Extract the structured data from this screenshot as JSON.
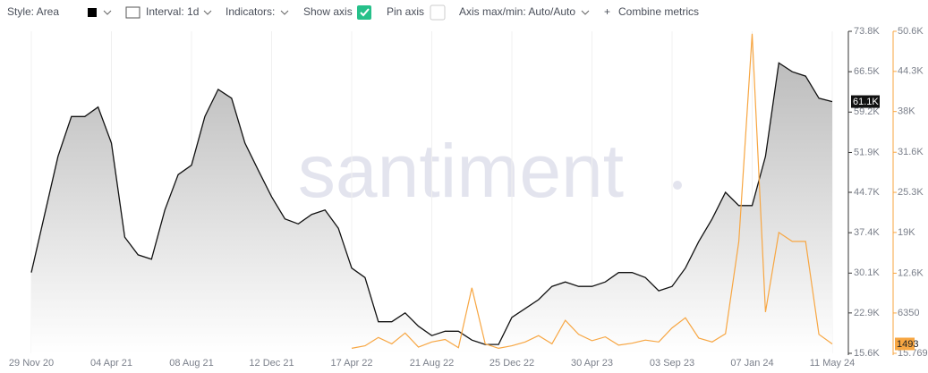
{
  "toolbar": {
    "style": "Style: Area",
    "interval": "Interval: 1d",
    "indicators": "Indicators:",
    "show_axis": "Show axis",
    "pin_axis": "Pin axis",
    "axis_range": "Axis max/min: Auto/Auto",
    "combine": "Combine metrics"
  },
  "chart_data": {
    "type": "line",
    "watermark": "santiment",
    "grid": true,
    "categories": [
      "29 Nov 20",
      null,
      null,
      null,
      null,
      null,
      "04 Apr 21",
      null,
      null,
      null,
      null,
      null,
      "08 Aug 21",
      null,
      null,
      null,
      null,
      null,
      "12 Dec 21",
      null,
      null,
      null,
      null,
      null,
      "17 Apr 22",
      null,
      null,
      null,
      null,
      null,
      "21 Aug 22",
      null,
      null,
      null,
      null,
      null,
      "25 Dec 22",
      null,
      null,
      null,
      null,
      null,
      "30 Apr 23",
      null,
      null,
      null,
      null,
      null,
      "03 Sep 23",
      null,
      null,
      null,
      null,
      null,
      "07 Jan 24",
      null,
      null,
      null,
      null,
      null,
      "11 May 24"
    ],
    "ylim": [
      15600,
      73800
    ],
    "yticks": [
      {
        "value": 15600,
        "label": "15.6K"
      },
      {
        "value": 22900,
        "label": "22.9K"
      },
      {
        "value": 30100,
        "label": "30.1K"
      },
      {
        "value": 37400,
        "label": "37.4K"
      },
      {
        "value": 44700,
        "label": "44.7K"
      },
      {
        "value": 51900,
        "label": "51.9K"
      },
      {
        "value": 59200,
        "label": "59.2K"
      },
      {
        "value": 66500,
        "label": "66.5K"
      },
      {
        "value": 73800,
        "label": "73.8K"
      }
    ],
    "y2lim": [
      15.769,
      50600
    ],
    "y2ticks": [
      15.769,
      6350,
      {
        "value": 12600,
        "label": "12.6K"
      },
      {
        "value": 19000,
        "label": "19K"
      },
      {
        "value": 25300,
        "label": "25.3K"
      },
      {
        "value": 31600,
        "label": "31.6K"
      },
      {
        "value": 38000,
        "label": "38K"
      },
      {
        "value": 44300,
        "label": "44.3K"
      },
      {
        "value": 50600,
        "label": "50.6K"
      }
    ],
    "series": [
      {
        "color": "#111111",
        "axis": "y",
        "last_label": "61.1K",
        "values": [
          30200,
          40700,
          51200,
          58400,
          58400,
          60100,
          53600,
          36600,
          33400,
          32600,
          41500,
          47900,
          49600,
          58400,
          63300,
          61700,
          53600,
          48700,
          43900,
          39900,
          39000,
          40700,
          41500,
          38200,
          31000,
          29300,
          21300,
          21300,
          22900,
          20500,
          18800,
          19600,
          19600,
          18000,
          17200,
          17200,
          22100,
          23700,
          25300,
          27700,
          28500,
          27700,
          27700,
          28500,
          30200,
          30200,
          29300,
          26900,
          27700,
          31000,
          35800,
          39900,
          44700,
          42300,
          42300,
          51200,
          68100,
          66500,
          65700,
          61700,
          61100
        ]
      },
      {
        "color": "#f7a642",
        "axis": "y2",
        "last_label": "1493",
        "values": [
          null,
          null,
          null,
          null,
          null,
          null,
          null,
          null,
          null,
          null,
          null,
          null,
          null,
          null,
          null,
          null,
          null,
          null,
          null,
          null,
          null,
          null,
          null,
          null,
          800,
          1200,
          2500,
          1500,
          3200,
          1000,
          1800,
          2200,
          900,
          10300,
          1500,
          800,
          1200,
          1800,
          2800,
          1500,
          5200,
          3000,
          2000,
          2600,
          1300,
          1600,
          2100,
          1800,
          4000,
          5600,
          2400,
          1800,
          3100,
          17600,
          50200,
          6500,
          19000,
          17600,
          17600,
          3000,
          1493
        ]
      }
    ]
  }
}
